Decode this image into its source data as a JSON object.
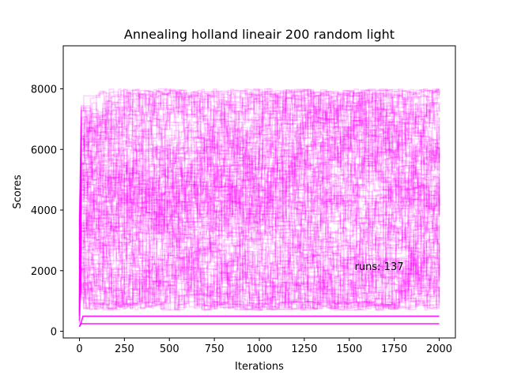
{
  "chart_data": {
    "type": "line",
    "title": "Annealing holland lineair 200 random light",
    "xlabel": "Iterations",
    "ylabel": "Scores",
    "xlim": [
      -90,
      2090
    ],
    "ylim": [
      -220,
      9420
    ],
    "x_ticks": [
      0,
      250,
      500,
      750,
      1000,
      1250,
      1500,
      1750,
      2000
    ],
    "y_ticks": [
      0,
      2000,
      4000,
      6000,
      8000
    ],
    "grid": false,
    "legend": "none",
    "annotation": {
      "text": "runs: 137",
      "x": 1530,
      "y": 2150
    },
    "series_color": "#ff00ff",
    "series_opacity": 0.18,
    "run_count": 137,
    "band": {
      "x_start": 0,
      "x_end": 2000,
      "typical_low": 1000,
      "typical_high": 7600,
      "max_observed": 9000
    },
    "series": [
      {
        "x": [
          0,
          10,
          20,
          2000
        ],
        "y": [
          150,
          300,
          500,
          500
        ]
      },
      {
        "x": [
          0,
          10,
          20,
          2000
        ],
        "y": [
          150,
          260,
          250,
          250
        ]
      }
    ]
  }
}
